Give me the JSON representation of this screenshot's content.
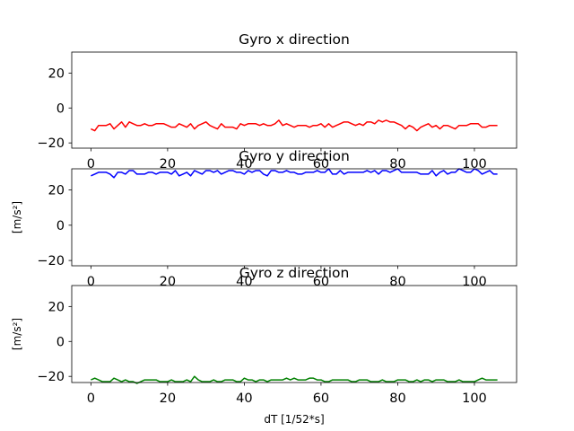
{
  "chart_data": [
    {
      "type": "line",
      "title": "Gyro x direction",
      "xlabel": "",
      "ylabel": "",
      "xlim": [
        -5,
        111
      ],
      "ylim": [
        -23,
        32
      ],
      "xticks": [
        0,
        20,
        40,
        60,
        80,
        100
      ],
      "yticks": [
        -20,
        0,
        20
      ],
      "xtick_labels": [
        "0",
        "20",
        "40",
        "60",
        "80",
        "100"
      ],
      "ytick_labels": [
        "−20",
        "0",
        "20"
      ],
      "grid": false,
      "series": [
        {
          "color": "#ff0000",
          "x": [
            0,
            1,
            2,
            3,
            4,
            5,
            6,
            7,
            8,
            9,
            10,
            11,
            12,
            13,
            14,
            15,
            16,
            17,
            18,
            19,
            20,
            21,
            22,
            23,
            24,
            25,
            26,
            27,
            28,
            29,
            30,
            31,
            32,
            33,
            34,
            35,
            36,
            37,
            38,
            39,
            40,
            41,
            42,
            43,
            44,
            45,
            46,
            47,
            48,
            49,
            50,
            51,
            52,
            53,
            54,
            55,
            56,
            57,
            58,
            59,
            60,
            61,
            62,
            63,
            64,
            65,
            66,
            67,
            68,
            69,
            70,
            71,
            72,
            73,
            74,
            75,
            76,
            77,
            78,
            79,
            80,
            81,
            82,
            83,
            84,
            85,
            86,
            87,
            88,
            89,
            90,
            91,
            92,
            93,
            94,
            95,
            96,
            97,
            98,
            99,
            100,
            101,
            102,
            103,
            104,
            105,
            106
          ],
          "values": [
            -12,
            -13,
            -10,
            -10,
            -10,
            -9,
            -12,
            -10,
            -8,
            -11,
            -8,
            -9,
            -10,
            -10,
            -9,
            -10,
            -10,
            -9,
            -9,
            -9,
            -10,
            -11,
            -11,
            -9,
            -10,
            -11,
            -9,
            -12,
            -10,
            -9,
            -8,
            -10,
            -11,
            -12,
            -9,
            -11,
            -11,
            -11,
            -12,
            -9,
            -10,
            -9,
            -9,
            -9,
            -10,
            -9,
            -10,
            -10,
            -9,
            -7,
            -10,
            -9,
            -10,
            -11,
            -10,
            -10,
            -10,
            -11,
            -10,
            -10,
            -9,
            -11,
            -9,
            -11,
            -10,
            -9,
            -8,
            -8,
            -9,
            -10,
            -9,
            -10,
            -8,
            -8,
            -9,
            -7,
            -8,
            -7,
            -8,
            -8,
            -9,
            -10,
            -12,
            -10,
            -11,
            -13,
            -11,
            -10,
            -9,
            -11,
            -10,
            -12,
            -10,
            -10,
            -11,
            -12,
            -10,
            -10,
            -10,
            -9,
            -9,
            -9,
            -11,
            -11,
            -10,
            -10,
            -10
          ]
        }
      ]
    },
    {
      "type": "line",
      "title": "Gyro y direction",
      "xlabel": "",
      "ylabel": "[m/s²]",
      "xlim": [
        -5,
        111
      ],
      "ylim": [
        -23,
        32
      ],
      "xticks": [
        0,
        20,
        40,
        60,
        80,
        100
      ],
      "yticks": [
        -20,
        0,
        20
      ],
      "xtick_labels": [
        "0",
        "20",
        "40",
        "60",
        "80",
        "100"
      ],
      "ytick_labels": [
        "−20",
        "0",
        "20"
      ],
      "grid": false,
      "series": [
        {
          "color": "#0000ff",
          "x": [
            0,
            1,
            2,
            3,
            4,
            5,
            6,
            7,
            8,
            9,
            10,
            11,
            12,
            13,
            14,
            15,
            16,
            17,
            18,
            19,
            20,
            21,
            22,
            23,
            24,
            25,
            26,
            27,
            28,
            29,
            30,
            31,
            32,
            33,
            34,
            35,
            36,
            37,
            38,
            39,
            40,
            41,
            42,
            43,
            44,
            45,
            46,
            47,
            48,
            49,
            50,
            51,
            52,
            53,
            54,
            55,
            56,
            57,
            58,
            59,
            60,
            61,
            62,
            63,
            64,
            65,
            66,
            67,
            68,
            69,
            70,
            71,
            72,
            73,
            74,
            75,
            76,
            77,
            78,
            79,
            80,
            81,
            82,
            83,
            84,
            85,
            86,
            87,
            88,
            89,
            90,
            91,
            92,
            93,
            94,
            95,
            96,
            97,
            98,
            99,
            100,
            101,
            102,
            103,
            104,
            105,
            106
          ],
          "values": [
            28,
            29,
            30,
            30,
            30,
            29,
            27,
            30,
            30,
            29,
            31,
            31,
            29,
            29,
            29,
            30,
            30,
            29,
            30,
            30,
            30,
            29,
            31,
            28,
            29,
            30,
            28,
            31,
            30,
            29,
            31,
            31,
            30,
            31,
            29,
            30,
            31,
            31,
            30,
            30,
            29,
            31,
            30,
            31,
            31,
            29,
            28,
            31,
            31,
            30,
            30,
            31,
            30,
            30,
            29,
            29,
            30,
            30,
            30,
            31,
            30,
            30,
            32,
            29,
            29,
            31,
            29,
            30,
            30,
            30,
            30,
            30,
            31,
            30,
            31,
            29,
            31,
            31,
            30,
            31,
            32,
            30,
            30,
            30,
            30,
            30,
            29,
            29,
            29,
            31,
            28,
            30,
            31,
            29,
            30,
            30,
            32,
            31,
            30,
            30,
            32,
            31,
            29,
            30,
            31,
            29,
            29
          ]
        }
      ]
    },
    {
      "type": "line",
      "title": "Gyro z direction",
      "xlabel": "dT [1/52*s]",
      "ylabel": "[m/s²]",
      "xlim": [
        -5,
        111
      ],
      "ylim": [
        -23.5,
        32
      ],
      "xticks": [
        0,
        20,
        40,
        60,
        80,
        100
      ],
      "yticks": [
        -20,
        0,
        20
      ],
      "xtick_labels": [
        "0",
        "20",
        "40",
        "60",
        "80",
        "100"
      ],
      "ytick_labels": [
        "−20",
        "0",
        "20"
      ],
      "grid": false,
      "series": [
        {
          "color": "#008000",
          "x": [
            0,
            1,
            2,
            3,
            4,
            5,
            6,
            7,
            8,
            9,
            10,
            11,
            12,
            13,
            14,
            15,
            16,
            17,
            18,
            19,
            20,
            21,
            22,
            23,
            24,
            25,
            26,
            27,
            28,
            29,
            30,
            31,
            32,
            33,
            34,
            35,
            36,
            37,
            38,
            39,
            40,
            41,
            42,
            43,
            44,
            45,
            46,
            47,
            48,
            49,
            50,
            51,
            52,
            53,
            54,
            55,
            56,
            57,
            58,
            59,
            60,
            61,
            62,
            63,
            64,
            65,
            66,
            67,
            68,
            69,
            70,
            71,
            72,
            73,
            74,
            75,
            76,
            77,
            78,
            79,
            80,
            81,
            82,
            83,
            84,
            85,
            86,
            87,
            88,
            89,
            90,
            91,
            92,
            93,
            94,
            95,
            96,
            97,
            98,
            99,
            100,
            101,
            102,
            103,
            104,
            105,
            106
          ],
          "values": [
            -22,
            -21,
            -22,
            -23,
            -23,
            -23,
            -21,
            -22,
            -23,
            -22,
            -23,
            -23,
            -24,
            -23,
            -22,
            -22,
            -22,
            -22,
            -23,
            -23,
            -23,
            -22,
            -23,
            -23,
            -23,
            -22,
            -23,
            -20,
            -22,
            -23,
            -23,
            -23,
            -22,
            -23,
            -23,
            -22,
            -22,
            -22,
            -23,
            -23,
            -21,
            -22,
            -22,
            -23,
            -22,
            -22,
            -23,
            -22,
            -22,
            -22,
            -22,
            -21,
            -22,
            -21,
            -22,
            -22,
            -22,
            -21,
            -21,
            -22,
            -22,
            -23,
            -23,
            -22,
            -22,
            -22,
            -22,
            -22,
            -23,
            -23,
            -22,
            -22,
            -22,
            -23,
            -23,
            -23,
            -22,
            -23,
            -23,
            -23,
            -22,
            -22,
            -22,
            -23,
            -23,
            -22,
            -23,
            -22,
            -22,
            -23,
            -22,
            -22,
            -22,
            -23,
            -23,
            -23,
            -22,
            -23,
            -23,
            -23,
            -23,
            -22,
            -21,
            -22,
            -22,
            -22,
            -22
          ]
        }
      ]
    }
  ]
}
